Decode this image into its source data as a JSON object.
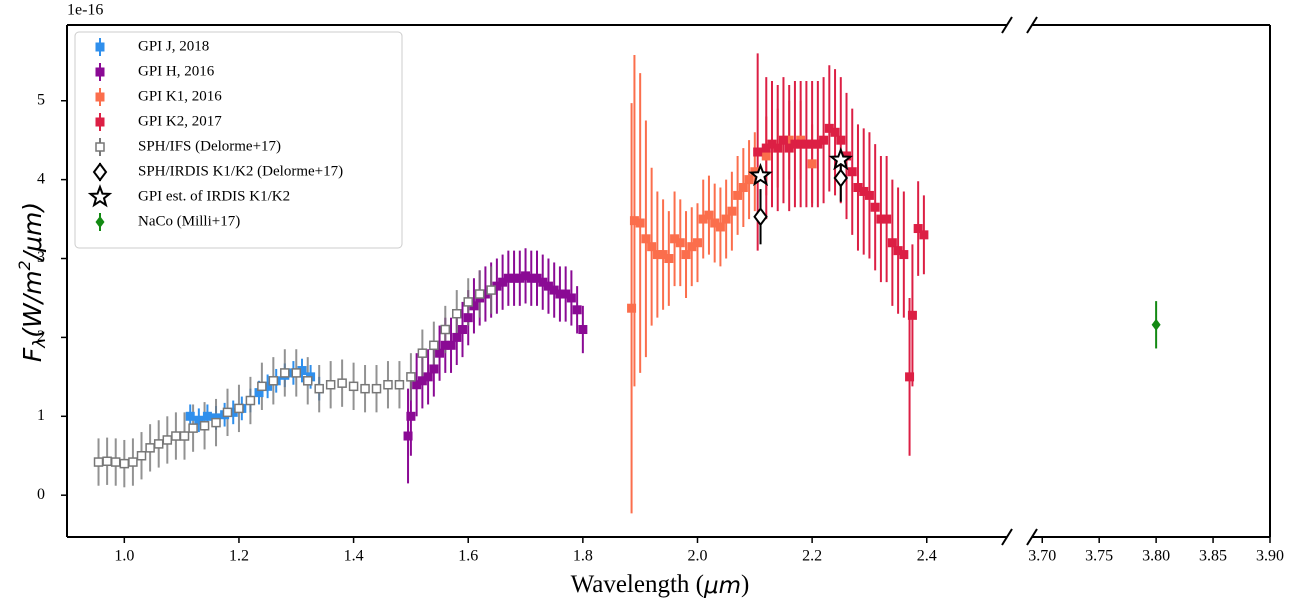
{
  "chart_data": {
    "type": "errorbar",
    "offset_text": "1e-16",
    "xlabel_parts": [
      "Wavelength (",
      "μm",
      ")"
    ],
    "ylabel_parts": [
      "F",
      "λ",
      "(W/m",
      "2",
      "/μm)"
    ],
    "xlim": [
      0.9,
      2.54
    ],
    "x2lim": [
      3.691,
      3.9
    ],
    "ylim": [
      -0.53,
      5.96
    ],
    "xticks": [
      {
        "value": 1.0,
        "label": "1.0"
      },
      {
        "value": 1.2,
        "label": "1.2"
      },
      {
        "value": 1.4,
        "label": "1.4"
      },
      {
        "value": 1.6,
        "label": "1.6"
      },
      {
        "value": 1.8,
        "label": "1.8"
      },
      {
        "value": 2.0,
        "label": "2.0"
      },
      {
        "value": 2.2,
        "label": "2.2"
      },
      {
        "value": 2.4,
        "label": "2.4"
      }
    ],
    "x2ticks": [
      {
        "value": 3.7,
        "label": "3.70"
      },
      {
        "value": 3.75,
        "label": "3.75"
      },
      {
        "value": 3.8,
        "label": "3.80"
      },
      {
        "value": 3.85,
        "label": "3.85"
      },
      {
        "value": 3.9,
        "label": "3.90"
      }
    ],
    "yticks": [
      0,
      1,
      2,
      3,
      4,
      5
    ],
    "legend": "upper left",
    "series": [
      {
        "name": "GPI J, 2018",
        "color": "#2f8fec",
        "marker": "square",
        "x": [
          1.115,
          1.13,
          1.145,
          1.16,
          1.175,
          1.19,
          1.205,
          1.22,
          1.235,
          1.25,
          1.265,
          1.28,
          1.295,
          1.31,
          1.325,
          1.34
        ],
        "values": [
          1.0,
          0.95,
          1.0,
          0.98,
          1.02,
          1.05,
          1.1,
          1.2,
          1.3,
          1.38,
          1.45,
          1.52,
          1.55,
          1.58,
          1.5,
          1.35
        ],
        "errors": [
          0.15,
          0.15,
          0.15,
          0.15,
          0.15,
          0.15,
          0.15,
          0.15,
          0.15,
          0.15,
          0.15,
          0.15,
          0.15,
          0.15,
          0.15,
          0.15
        ]
      },
      {
        "name": "GPI H, 2016",
        "color": "#8a0a94",
        "marker": "square",
        "x": [
          1.495,
          1.5,
          1.51,
          1.52,
          1.53,
          1.54,
          1.55,
          1.56,
          1.57,
          1.58,
          1.59,
          1.6,
          1.61,
          1.62,
          1.63,
          1.64,
          1.65,
          1.66,
          1.67,
          1.68,
          1.69,
          1.7,
          1.71,
          1.72,
          1.73,
          1.74,
          1.75,
          1.76,
          1.77,
          1.78,
          1.79,
          1.8
        ],
        "values": [
          0.75,
          1.0,
          1.4,
          1.45,
          1.5,
          1.6,
          1.8,
          1.9,
          1.9,
          2.0,
          2.1,
          2.25,
          2.4,
          2.5,
          2.55,
          2.6,
          2.65,
          2.7,
          2.75,
          2.75,
          2.75,
          2.78,
          2.75,
          2.75,
          2.7,
          2.65,
          2.6,
          2.55,
          2.55,
          2.5,
          2.35,
          2.1
        ],
        "errors": [
          0.6,
          0.5,
          0.4,
          0.35,
          0.35,
          0.35,
          0.35,
          0.35,
          0.35,
          0.35,
          0.35,
          0.35,
          0.35,
          0.35,
          0.35,
          0.35,
          0.35,
          0.35,
          0.35,
          0.35,
          0.35,
          0.35,
          0.35,
          0.35,
          0.35,
          0.35,
          0.35,
          0.35,
          0.35,
          0.35,
          0.3,
          0.3
        ]
      },
      {
        "name": "GPI K1, 2016",
        "color": "#fb6e4c",
        "marker": "square",
        "x": [
          1.885,
          1.89,
          1.9,
          1.91,
          1.92,
          1.93,
          1.94,
          1.95,
          1.96,
          1.97,
          1.98,
          1.99,
          2.0,
          2.01,
          2.02,
          2.03,
          2.04,
          2.05,
          2.06,
          2.07,
          2.08,
          2.09,
          2.1,
          2.12,
          2.14,
          2.16,
          2.18,
          2.2
        ],
        "values": [
          2.37,
          3.48,
          3.45,
          3.25,
          3.15,
          3.05,
          3.05,
          3.0,
          3.25,
          3.2,
          3.05,
          3.15,
          3.2,
          3.5,
          3.55,
          3.45,
          3.4,
          3.5,
          3.6,
          3.8,
          3.9,
          4.0,
          4.1,
          4.3,
          4.4,
          4.5,
          4.5,
          4.2
        ],
        "errors": [
          2.6,
          2.1,
          1.9,
          1.5,
          1.0,
          0.8,
          0.7,
          0.6,
          0.6,
          0.55,
          0.55,
          0.5,
          0.5,
          0.5,
          0.5,
          0.5,
          0.5,
          0.5,
          0.5,
          0.5,
          0.5,
          0.5,
          0.5,
          0.5,
          0.5,
          0.5,
          0.5,
          0.5
        ]
      },
      {
        "name": "GPI K2, 2017",
        "color": "#dc1f44",
        "marker": "square",
        "x": [
          2.105,
          2.12,
          2.13,
          2.14,
          2.15,
          2.16,
          2.17,
          2.18,
          2.19,
          2.2,
          2.21,
          2.22,
          2.23,
          2.24,
          2.25,
          2.26,
          2.27,
          2.28,
          2.29,
          2.3,
          2.31,
          2.32,
          2.33,
          2.34,
          2.35,
          2.36,
          2.37,
          2.375,
          2.385,
          2.395
        ],
        "values": [
          4.35,
          4.4,
          4.45,
          4.4,
          4.5,
          4.4,
          4.45,
          4.45,
          4.45,
          4.45,
          4.45,
          4.5,
          4.65,
          4.6,
          4.5,
          4.3,
          4.1,
          3.9,
          3.85,
          3.8,
          3.65,
          3.5,
          3.5,
          3.2,
          3.1,
          3.05,
          1.5,
          2.28,
          3.38,
          3.3
        ],
        "errors": [
          1.25,
          0.9,
          0.8,
          0.8,
          0.8,
          0.8,
          0.8,
          0.8,
          0.8,
          0.8,
          0.8,
          0.8,
          0.8,
          0.8,
          0.8,
          0.8,
          0.8,
          0.8,
          0.8,
          0.8,
          0.8,
          0.8,
          0.8,
          0.8,
          0.8,
          0.8,
          1.0,
          0.9,
          0.6,
          0.5
        ]
      },
      {
        "name": "SPH/IFS (Delorme+17)",
        "color": "#777777",
        "marker": "open-square",
        "x": [
          0.955,
          0.97,
          0.985,
          1.0,
          1.015,
          1.03,
          1.045,
          1.06,
          1.075,
          1.09,
          1.105,
          1.12,
          1.14,
          1.16,
          1.18,
          1.2,
          1.22,
          1.24,
          1.26,
          1.28,
          1.3,
          1.32,
          1.34,
          1.36,
          1.38,
          1.4,
          1.42,
          1.44,
          1.46,
          1.48,
          1.5,
          1.52,
          1.54,
          1.56,
          1.58,
          1.6,
          1.62,
          1.64
        ],
        "values": [
          0.42,
          0.43,
          0.42,
          0.4,
          0.42,
          0.5,
          0.6,
          0.65,
          0.7,
          0.75,
          0.75,
          0.85,
          0.88,
          0.92,
          1.05,
          1.1,
          1.2,
          1.38,
          1.45,
          1.55,
          1.55,
          1.45,
          1.35,
          1.4,
          1.42,
          1.38,
          1.35,
          1.35,
          1.4,
          1.4,
          1.5,
          1.8,
          1.9,
          2.1,
          2.3,
          2.45,
          2.55,
          2.6
        ],
        "errors": [
          0.3,
          0.3,
          0.3,
          0.3,
          0.3,
          0.3,
          0.3,
          0.3,
          0.3,
          0.3,
          0.3,
          0.3,
          0.3,
          0.3,
          0.3,
          0.3,
          0.3,
          0.3,
          0.3,
          0.3,
          0.3,
          0.3,
          0.3,
          0.3,
          0.3,
          0.3,
          0.3,
          0.3,
          0.3,
          0.3,
          0.3,
          0.3,
          0.3,
          0.3,
          0.3,
          0.3,
          0.3,
          0.3
        ]
      },
      {
        "name": "SPH/IRDIS K1/K2 (Delorme+17)",
        "color": "#000000",
        "marker": "open-diamond",
        "x": [
          2.11,
          2.25
        ],
        "values": [
          3.53,
          4.02
        ],
        "errors": [
          0.35,
          0.3
        ]
      },
      {
        "name": "GPI est. of IRDIS K1/K2",
        "color": "#000000",
        "marker": "open-star",
        "x": [
          2.11,
          2.25
        ],
        "values": [
          4.05,
          4.25
        ]
      },
      {
        "name": "NaCo (Milli+17)",
        "color": "#138a13",
        "marker": "diamond",
        "axis": "x2",
        "x": [
          3.8
        ],
        "values": [
          2.16
        ],
        "errors": [
          0.3
        ]
      }
    ]
  }
}
